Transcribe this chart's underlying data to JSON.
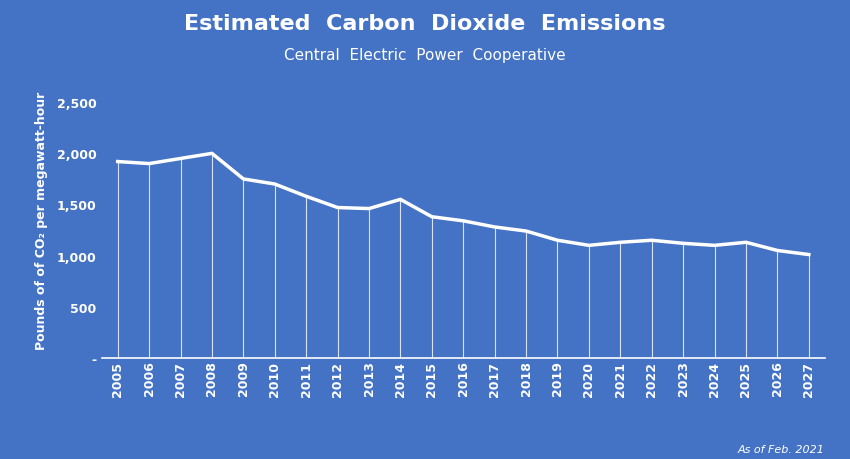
{
  "title": "Estimated  Carbon  Dioxide  Emissions",
  "subtitle": "Central  Electric  Power  Cooperative",
  "footnote": "As of Feb. 2021",
  "ylabel": "Pounds of of CO₂ per megawatt-hour",
  "years": [
    2005,
    2006,
    2007,
    2008,
    2009,
    2010,
    2011,
    2012,
    2013,
    2014,
    2015,
    2016,
    2017,
    2018,
    2019,
    2020,
    2021,
    2022,
    2023,
    2024,
    2025,
    2026,
    2027
  ],
  "values": [
    1920,
    1900,
    1950,
    2000,
    1750,
    1700,
    1580,
    1470,
    1460,
    1550,
    1380,
    1340,
    1280,
    1240,
    1150,
    1100,
    1130,
    1150,
    1120,
    1100,
    1130,
    1050,
    1010
  ],
  "background_color": "#4472C4",
  "line_color": "#FFFFFF",
  "text_color": "#FFFFFF",
  "ylim": [
    0,
    2700
  ],
  "yticks": [
    0,
    500,
    1000,
    1500,
    2000,
    2500
  ],
  "ytick_labels": [
    "-",
    "500",
    "1,000",
    "1,500",
    "2,000",
    "2,500"
  ],
  "title_fontsize": 16,
  "subtitle_fontsize": 11,
  "ylabel_fontsize": 9,
  "tick_fontsize": 9,
  "footnote_fontsize": 8
}
